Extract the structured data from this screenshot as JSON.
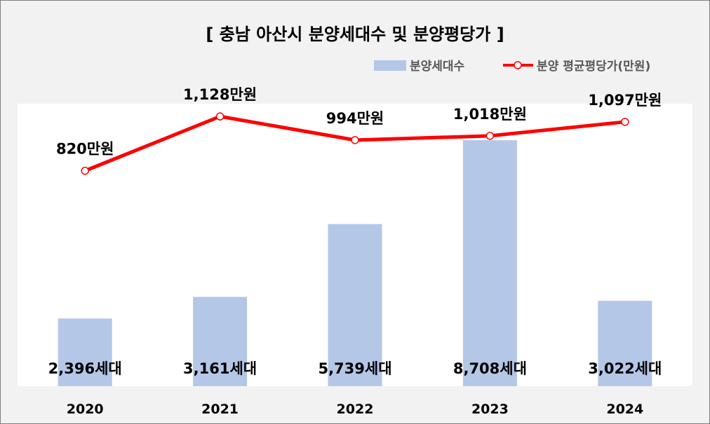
{
  "chart_data": {
    "type": "bar",
    "title": "[ 충남 아산시 분양세대수 및 분양평당가 ]",
    "categories": [
      "2020",
      "2021",
      "2022",
      "2023",
      "2024"
    ],
    "series": [
      {
        "name": "분양세대수",
        "type": "bar",
        "axis": "left",
        "color": "#b4c7e7",
        "values": [
          2396,
          3161,
          5739,
          8708,
          3022
        ],
        "labels": [
          "2,396세대",
          "3,161세대",
          "5,739세대",
          "8,708세대",
          "3,022세대"
        ]
      },
      {
        "name": "분양 평균평당가(만원)",
        "type": "line",
        "axis": "right",
        "color": "#ff0000",
        "values": [
          820,
          1128,
          994,
          1018,
          1097
        ],
        "labels": [
          "820만원",
          "1,128만원",
          "994만원",
          "1,018만원",
          "1,097만원"
        ]
      }
    ],
    "ylim_left": [
      0,
      10000
    ],
    "ylim_right": [
      -400,
      1200
    ],
    "grid": false,
    "legend_position": "top-right",
    "plot_background": "#ffffff",
    "chart_background": "#f2f2f2"
  }
}
